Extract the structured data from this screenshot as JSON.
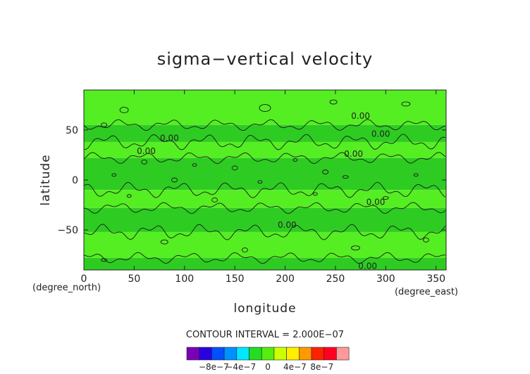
{
  "chart_data": {
    "type": "heatmap",
    "title": "sigma−vertical velocity",
    "xlabel": "longitude",
    "ylabel": "latitude",
    "x_unit": "(degree_east)",
    "y_unit": "(degree_north)",
    "xlim": [
      0,
      360
    ],
    "ylim": [
      -90,
      90
    ],
    "x_ticks": [
      0,
      50,
      100,
      150,
      200,
      250,
      300,
      350
    ],
    "x_tick_labels": [
      "0",
      "50",
      "100",
      "150",
      "200",
      "250",
      "300",
      "350"
    ],
    "y_ticks": [
      50,
      0,
      -50
    ],
    "y_tick_labels": [
      "50",
      "0",
      "−50"
    ],
    "contour_interval_text": "CONTOUR INTERVAL = 2.000E−07",
    "contour_labels": [
      {
        "text": "0.00",
        "lon": 275,
        "lat": 64
      },
      {
        "text": "0.00",
        "lon": 295,
        "lat": 46
      },
      {
        "text": "0.00",
        "lon": 85,
        "lat": 42
      },
      {
        "text": "0.00",
        "lon": 62,
        "lat": 29
      },
      {
        "text": "0.00",
        "lon": 268,
        "lat": 26
      },
      {
        "text": "0.00",
        "lon": 290,
        "lat": -22
      },
      {
        "text": "0.00",
        "lon": 202,
        "lat": -45
      },
      {
        "text": "0.00",
        "lon": 282,
        "lat": -86
      }
    ],
    "bands_description": "alternating slightly lighter and darker green zonal bands of near-zero values",
    "bands": [
      {
        "lat_from": 90,
        "lat_to": 55,
        "shade": "light"
      },
      {
        "lat_from": 55,
        "lat_to": 38,
        "shade": "dark"
      },
      {
        "lat_from": 38,
        "lat_to": 22,
        "shade": "light"
      },
      {
        "lat_from": 22,
        "lat_to": -10,
        "shade": "dark"
      },
      {
        "lat_from": -10,
        "lat_to": -28,
        "shade": "light"
      },
      {
        "lat_from": -28,
        "lat_to": -52,
        "shade": "dark"
      },
      {
        "lat_from": -52,
        "lat_to": -78,
        "shade": "light"
      },
      {
        "lat_from": -78,
        "lat_to": -90,
        "shade": "dark"
      }
    ],
    "colorbar": {
      "colors": [
        "#7a00b8",
        "#2a00e0",
        "#0050ff",
        "#0090ff",
        "#00e8ff",
        "#22dd22",
        "#55ee11",
        "#ccff00",
        "#ffee00",
        "#ff9900",
        "#ff2200",
        "#ff0022",
        "#ff9999"
      ],
      "tick_labels": [
        "−8e−7",
        "−4e−7",
        "0",
        "4e−7",
        "8e−7"
      ],
      "tick_values": [
        -8e-07,
        -4e-07,
        0,
        4e-07,
        8e-07
      ],
      "range": [
        -1.2e-06,
        1.2e-06
      ]
    },
    "colors": {
      "light_green": "#55ee22",
      "dark_green": "#2ecc22",
      "contour": "#1a1a1a"
    }
  }
}
